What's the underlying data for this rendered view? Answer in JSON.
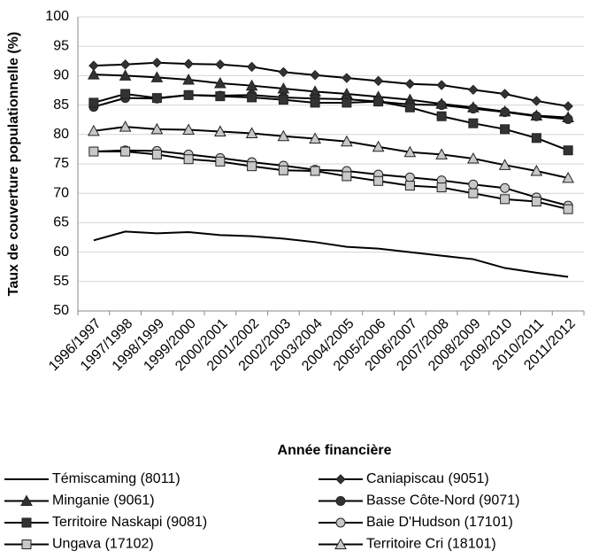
{
  "chart_data": {
    "type": "line",
    "y_label": "Taux de couverture populationnelle (%)",
    "x_label": "Année financière",
    "categories": [
      "1996/1997",
      "1997/1998",
      "1998/1999",
      "1999/2000",
      "2000/2001",
      "2001/2002",
      "2002/2003",
      "2003/2004",
      "2004/2005",
      "2005/2006",
      "2006/2007",
      "2007/2008",
      "2008/2009",
      "2009/2010",
      "2010/2011",
      "2011/2012"
    ],
    "ylim": [
      50,
      100
    ],
    "yticks": [
      50,
      55,
      60,
      65,
      70,
      75,
      80,
      85,
      90,
      95,
      100
    ],
    "grid": true,
    "series": [
      {
        "name": "Témiscaming (8011)",
        "color": "#000000",
        "marker": "none",
        "marker_color": "#000000",
        "values": [
          62.0,
          63.5,
          63.2,
          63.4,
          62.9,
          62.7,
          62.3,
          61.7,
          60.9,
          60.6,
          60.0,
          59.4,
          58.8,
          57.3,
          56.5,
          55.8
        ]
      },
      {
        "name": "Caniapiscau (9051)",
        "color": "#000000",
        "marker": "diamond",
        "marker_color": "#333333",
        "values": [
          91.7,
          91.9,
          92.2,
          92.0,
          91.9,
          91.5,
          90.6,
          90.1,
          89.6,
          89.1,
          88.6,
          88.4,
          87.6,
          86.9,
          85.7,
          84.8
        ]
      },
      {
        "name": "Minganie (9061)",
        "color": "#000000",
        "marker": "triangle",
        "marker_color": "#333333",
        "values": [
          90.2,
          90.0,
          89.7,
          89.3,
          88.7,
          88.3,
          87.8,
          87.3,
          86.9,
          86.4,
          85.9,
          85.2,
          84.6,
          83.9,
          83.2,
          82.9
        ]
      },
      {
        "name": "Basse Côte-Nord (9071)",
        "color": "#000000",
        "marker": "circle",
        "marker_color": "#333333",
        "values": [
          84.7,
          86.2,
          86.1,
          86.7,
          86.6,
          86.7,
          86.3,
          86.1,
          86.0,
          85.6,
          85.1,
          85.0,
          84.4,
          83.8,
          83.1,
          82.6
        ]
      },
      {
        "name": "Territoire Naskapi (9081)",
        "color": "#000000",
        "marker": "square",
        "marker_color": "#333333",
        "values": [
          85.4,
          86.9,
          86.2,
          86.7,
          86.5,
          86.3,
          85.9,
          85.4,
          85.4,
          85.6,
          84.6,
          83.1,
          81.9,
          80.9,
          79.4,
          77.3
        ]
      },
      {
        "name": "Baie D'Hudson (17101)",
        "color": "#000000",
        "marker": "circle",
        "marker_color": "#c8c8c8",
        "values": [
          77.1,
          77.3,
          77.2,
          76.6,
          76.0,
          75.3,
          74.7,
          74.0,
          73.8,
          73.2,
          72.7,
          72.2,
          71.5,
          70.9,
          69.3,
          67.9
        ]
      },
      {
        "name": "Ungava (17102)",
        "color": "#000000",
        "marker": "square",
        "marker_color": "#c8c8c8",
        "values": [
          77.1,
          77.1,
          76.6,
          75.8,
          75.4,
          74.6,
          73.9,
          73.8,
          72.9,
          72.1,
          71.3,
          71.0,
          70.0,
          69.0,
          68.6,
          67.3
        ]
      },
      {
        "name": "Territoire Cri (18101)",
        "color": "#000000",
        "marker": "triangle",
        "marker_color": "#c8c8c8",
        "values": [
          80.6,
          81.3,
          80.9,
          80.8,
          80.5,
          80.2,
          79.7,
          79.3,
          78.8,
          77.9,
          77.0,
          76.6,
          75.9,
          74.8,
          73.8,
          72.6
        ]
      }
    ]
  }
}
